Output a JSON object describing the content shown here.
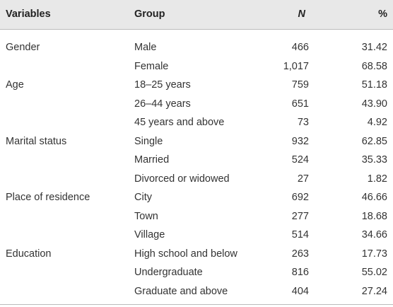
{
  "table": {
    "header": [
      "Variables",
      "Group",
      "N",
      "%"
    ],
    "groups": [
      {
        "variable": "Gender",
        "rows": [
          [
            "Male",
            "466",
            "31.42"
          ],
          [
            "Female",
            "1,017",
            "68.58"
          ]
        ]
      },
      {
        "variable": "Age",
        "rows": [
          [
            "18–25 years",
            "759",
            "51.18"
          ],
          [
            "26–44 years",
            "651",
            "43.90"
          ],
          [
            "45 years and above",
            "73",
            "4.92"
          ]
        ]
      },
      {
        "variable": "Marital status",
        "rows": [
          [
            "Single",
            "932",
            "62.85"
          ],
          [
            "Married",
            "524",
            "35.33"
          ],
          [
            "Divorced or widowed",
            "27",
            "1.82"
          ]
        ]
      },
      {
        "variable": "Place of residence",
        "rows": [
          [
            "City",
            "692",
            "46.66"
          ],
          [
            "Town",
            "277",
            "18.68"
          ],
          [
            "Village",
            "514",
            "34.66"
          ]
        ]
      },
      {
        "variable": "Education",
        "rows": [
          [
            "High school and below",
            "263",
            "17.73"
          ],
          [
            "Undergraduate",
            "816",
            "55.02"
          ],
          [
            "Graduate and above",
            "404",
            "27.24"
          ]
        ]
      }
    ]
  }
}
